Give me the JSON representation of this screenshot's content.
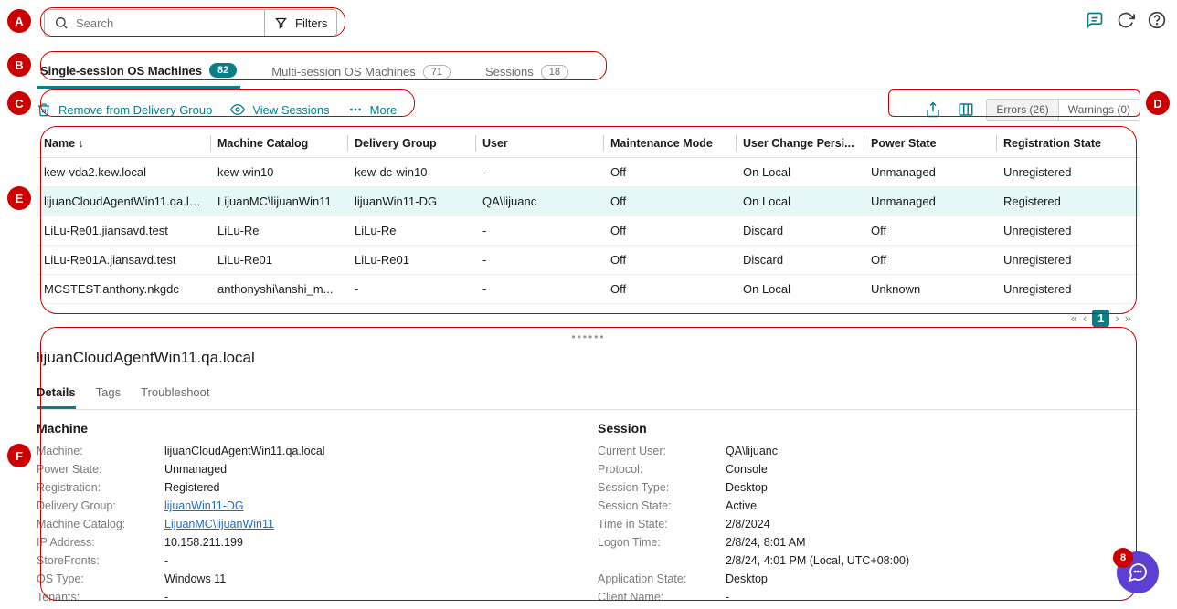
{
  "search": {
    "placeholder": "Search",
    "filters_label": "Filters"
  },
  "top_icons": {
    "chat": "chat-icon",
    "refresh": "refresh-icon",
    "help": "help-icon"
  },
  "tabs": {
    "single": {
      "label": "Single-session OS Machines",
      "count": "82"
    },
    "multi": {
      "label": "Multi-session OS Machines",
      "count": "71"
    },
    "sessions": {
      "label": "Sessions",
      "count": "18"
    }
  },
  "actions": {
    "remove": "Remove from Delivery Group",
    "view_sessions": "View Sessions",
    "more": "More"
  },
  "right_tools": {
    "errors": "Errors (26)",
    "warnings": "Warnings (0)"
  },
  "columns": {
    "name": "Name ↓",
    "catalog": "Machine Catalog",
    "dg": "Delivery Group",
    "user": "User",
    "mm": "Maintenance Mode",
    "ucp": "User Change Persi...",
    "ps": "Power State",
    "rs": "Registration State"
  },
  "rows": [
    {
      "name": "kew-vda2.kew.local",
      "catalog": "kew-win10",
      "dg": "kew-dc-win10",
      "user": "-",
      "mm": "Off",
      "ucp": "On Local",
      "ps": "Unmanaged",
      "rs": "Unregistered",
      "selected": false
    },
    {
      "name": "lijuanCloudAgentWin11.qa.lo...",
      "catalog": "LijuanMC\\lijuanWin11",
      "dg": "lijuanWin11-DG",
      "user": "QA\\lijuanc",
      "mm": "Off",
      "ucp": "On Local",
      "ps": "Unmanaged",
      "rs": "Registered",
      "selected": true
    },
    {
      "name": "LiLu-Re01.jiansavd.test",
      "catalog": "LiLu-Re",
      "dg": "LiLu-Re",
      "user": "-",
      "mm": "Off",
      "ucp": "Discard",
      "ps": "Off",
      "rs": "Unregistered",
      "selected": false
    },
    {
      "name": "LiLu-Re01A.jiansavd.test",
      "catalog": "LiLu-Re01",
      "dg": "LiLu-Re01",
      "user": "-",
      "mm": "Off",
      "ucp": "Discard",
      "ps": "Off",
      "rs": "Unregistered",
      "selected": false
    },
    {
      "name": "MCSTEST.anthony.nkgdc",
      "catalog": "anthonyshi\\anshi_m...",
      "dg": "-",
      "user": "-",
      "mm": "Off",
      "ucp": "On Local",
      "ps": "Unknown",
      "rs": "Unregistered",
      "selected": false
    }
  ],
  "pager": {
    "current": "1"
  },
  "details": {
    "title": "lijuanCloudAgentWin11.qa.local",
    "tabs": {
      "details": "Details",
      "tags": "Tags",
      "trouble": "Troubleshoot"
    },
    "machine_header": "Machine",
    "session_header": "Session",
    "machine": {
      "machine_lbl": "Machine:",
      "machine_val": "lijuanCloudAgentWin11.qa.local",
      "ps_lbl": "Power State:",
      "ps_val": "Unmanaged",
      "reg_lbl": "Registration:",
      "reg_val": "Registered",
      "dg_lbl": "Delivery Group:",
      "dg_val": "lijuanWin11-DG",
      "cat_lbl": "Machine Catalog:",
      "cat_val": "LijuanMC\\lijuanWin11",
      "ip_lbl": "IP Address:",
      "ip_val": "10.158.211.199",
      "sf_lbl": "StoreFronts:",
      "sf_val": "-",
      "os_lbl": "OS Type:",
      "os_val": "Windows 11",
      "ten_lbl": "Tenants:",
      "ten_val": "-"
    },
    "session": {
      "cu_lbl": "Current User:",
      "cu_val": "QA\\lijuanc",
      "proto_lbl": "Protocol:",
      "proto_val": "Console",
      "stype_lbl": "Session Type:",
      "stype_val": "Desktop",
      "sstate_lbl": "Session State:",
      "sstate_val": "Active",
      "tis_lbl": "Time in State:",
      "tis_val": "2/8/2024",
      "logon_lbl": "Logon Time:",
      "logon_val": "2/8/24, 8:01 AM",
      "extra_val": "2/8/24, 4:01 PM (Local, UTC+08:00)",
      "app_lbl": "Application State:",
      "app_val": "Desktop",
      "client_lbl": "Client Name:",
      "client_val": "-"
    }
  },
  "annotations": {
    "a": "A",
    "b": "B",
    "c": "C",
    "d": "D",
    "e": "E",
    "f": "F",
    "chat_count": "8"
  },
  "colors": {
    "brand": "#067f88",
    "annot": "#cc0000",
    "link": "#1d6bc0",
    "float": "#5d3fd3"
  }
}
